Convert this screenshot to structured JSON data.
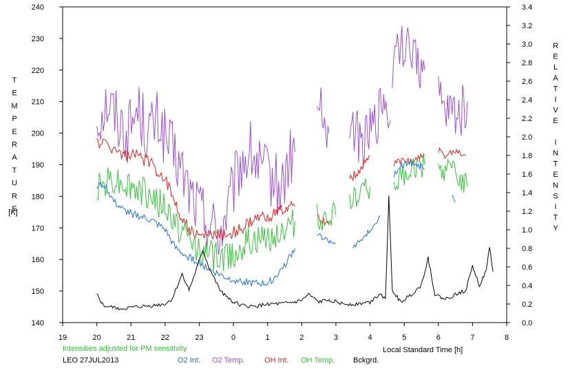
{
  "chart_data": {
    "type": "line",
    "left_axis": {
      "label_letters": [
        "T",
        "E",
        "M",
        "P",
        "E",
        "R",
        "A",
        "T",
        "U",
        "R",
        "E"
      ],
      "unit": "[K]",
      "ylim": [
        140,
        240
      ],
      "ticks": [
        140,
        150,
        160,
        170,
        180,
        190,
        200,
        210,
        220,
        230,
        240
      ]
    },
    "right_axis": {
      "label_letters": [
        "R",
        "E",
        "L",
        "A",
        "T",
        "I",
        "V",
        "E",
        "",
        "I",
        "N",
        "T",
        "E",
        "N",
        "S",
        "I",
        "T",
        "Y"
      ],
      "ylim": [
        0.0,
        3.4
      ],
      "ticks": [
        "0.0",
        "0.2",
        "0.4",
        "0.6",
        "0.8",
        "1.0",
        "1.2",
        "1.4",
        "1.6",
        "1.8",
        "2.0",
        "2.2",
        "2.4",
        "2.6",
        "2.8",
        "3.0",
        "3.2",
        "3.4"
      ]
    },
    "x_axis": {
      "label": "Local Standard Time [h]",
      "range_hours_after_19": [
        0,
        13
      ],
      "tick_labels": [
        "19",
        "20",
        "21",
        "22",
        "23",
        "0",
        "1",
        "2",
        "3",
        "4",
        "5",
        "6",
        "7",
        "8"
      ]
    },
    "note": "Intensities adjusted for PM sensitivity",
    "station_date": "LEO 27JUL2013",
    "legend": [
      {
        "label": "O2 Int.",
        "color": "#1f6fd6"
      },
      {
        "label": "O2 Temp.",
        "color": "#9b4fd1"
      },
      {
        "label": "OH Int.",
        "color": "#e0201c"
      },
      {
        "label": "OH Temp.",
        "color": "#35c23a"
      },
      {
        "label": "Bckgrd.",
        "color": "#000000"
      }
    ],
    "series": [
      {
        "name": "O2 Temp.",
        "axis": "left",
        "color": "#9b4fd1",
        "amp": 10,
        "points": [
          [
            20.0,
            204
          ],
          [
            20.3,
            210
          ],
          [
            20.6,
            205
          ],
          [
            20.9,
            200
          ],
          [
            21.2,
            208
          ],
          [
            21.5,
            200
          ],
          [
            21.8,
            204
          ],
          [
            22.1,
            196
          ],
          [
            22.4,
            190
          ],
          [
            22.7,
            182
          ],
          [
            23.0,
            176
          ],
          [
            23.3,
            172
          ],
          [
            23.6,
            168
          ],
          [
            23.9,
            178
          ],
          [
            24.2,
            190
          ],
          [
            24.5,
            194
          ],
          [
            24.8,
            188
          ],
          [
            25.1,
            186
          ],
          [
            25.4,
            182
          ],
          [
            25.6,
            190
          ],
          [
            25.8,
            194
          ]
        ]
      },
      {
        "name": "O2 Temp.",
        "axis": "left",
        "color": "#9b4fd1",
        "amp": 8,
        "points": [
          [
            26.45,
            212
          ],
          [
            26.6,
            206
          ],
          [
            26.8,
            200
          ]
        ]
      },
      {
        "name": "O2 Temp.",
        "axis": "left",
        "color": "#9b4fd1",
        "amp": 8,
        "points": [
          [
            27.4,
            204
          ],
          [
            27.6,
            200
          ],
          [
            27.8,
            196
          ],
          [
            28.0,
            200
          ],
          [
            28.2,
            204
          ],
          [
            28.4,
            212
          ],
          [
            28.6,
            204
          ]
        ]
      },
      {
        "name": "O2 Temp.",
        "axis": "left",
        "color": "#9b4fd1",
        "amp": 8,
        "points": [
          [
            28.65,
            222
          ],
          [
            28.8,
            226
          ],
          [
            29.0,
            228
          ],
          [
            29.2,
            224
          ],
          [
            29.4,
            222
          ],
          [
            29.6,
            220
          ]
        ]
      },
      {
        "name": "O2 Temp.",
        "axis": "left",
        "color": "#9b4fd1",
        "amp": 8,
        "points": [
          [
            30.0,
            212
          ],
          [
            30.2,
            206
          ],
          [
            30.4,
            208
          ],
          [
            30.6,
            206
          ],
          [
            30.85,
            210
          ]
        ]
      },
      {
        "name": "OH Int.",
        "axis": "right",
        "color": "#e0201c",
        "amp": 0.07,
        "points": [
          [
            20.0,
            1.95
          ],
          [
            20.4,
            1.9
          ],
          [
            20.8,
            1.8
          ],
          [
            21.2,
            1.8
          ],
          [
            21.6,
            1.7
          ],
          [
            22.0,
            1.55
          ],
          [
            22.4,
            1.2
          ],
          [
            22.7,
            1.0
          ],
          [
            23.0,
            0.92
          ],
          [
            23.4,
            0.95
          ],
          [
            23.8,
            0.95
          ],
          [
            24.2,
            1.0
          ],
          [
            24.6,
            1.1
          ],
          [
            25.0,
            1.15
          ],
          [
            25.4,
            1.2
          ],
          [
            25.8,
            1.25
          ]
        ]
      },
      {
        "name": "OH Int.",
        "axis": "right",
        "color": "#e0201c",
        "amp": 0.05,
        "points": [
          [
            26.45,
            1.15
          ],
          [
            26.6,
            1.1
          ],
          [
            26.8,
            1.05
          ]
        ]
      },
      {
        "name": "OH Int.",
        "axis": "right",
        "color": "#e0201c",
        "amp": 0.05,
        "points": [
          [
            27.4,
            1.55
          ],
          [
            27.6,
            1.6
          ],
          [
            27.8,
            1.7
          ],
          [
            28.0,
            1.8
          ]
        ]
      },
      {
        "name": "OH Int.",
        "axis": "right",
        "color": "#e0201c",
        "amp": 0.05,
        "points": [
          [
            28.7,
            1.7
          ],
          [
            29.0,
            1.75
          ],
          [
            29.3,
            1.75
          ],
          [
            29.6,
            1.8
          ]
        ]
      },
      {
        "name": "OH Int.",
        "axis": "right",
        "color": "#e0201c",
        "amp": 0.04,
        "points": [
          [
            30.0,
            1.85
          ],
          [
            30.2,
            1.8
          ],
          [
            30.5,
            1.85
          ],
          [
            30.8,
            1.8
          ]
        ]
      },
      {
        "name": "OH Temp.",
        "axis": "left",
        "color": "#35c23a",
        "amp": 5,
        "points": [
          [
            20.0,
            183
          ],
          [
            20.4,
            186
          ],
          [
            20.8,
            184
          ],
          [
            21.2,
            182
          ],
          [
            21.6,
            180
          ],
          [
            22.0,
            176
          ],
          [
            22.4,
            170
          ],
          [
            22.8,
            165
          ],
          [
            23.2,
            162
          ],
          [
            23.6,
            160
          ],
          [
            24.0,
            162
          ],
          [
            24.4,
            165
          ],
          [
            24.8,
            166
          ],
          [
            25.2,
            168
          ],
          [
            25.6,
            170
          ],
          [
            25.8,
            172
          ]
        ]
      },
      {
        "name": "OH Temp.",
        "axis": "left",
        "color": "#35c23a",
        "amp": 4,
        "points": [
          [
            26.45,
            174
          ],
          [
            26.6,
            172
          ],
          [
            26.8,
            175
          ],
          [
            27.0,
            174
          ]
        ]
      },
      {
        "name": "OH Temp.",
        "axis": "left",
        "color": "#35c23a",
        "amp": 4,
        "points": [
          [
            27.4,
            178
          ],
          [
            27.6,
            180
          ],
          [
            27.8,
            183
          ],
          [
            28.0,
            183
          ]
        ]
      },
      {
        "name": "OH Temp.",
        "axis": "left",
        "color": "#35c23a",
        "amp": 4,
        "points": [
          [
            28.7,
            183
          ],
          [
            29.0,
            187
          ],
          [
            29.3,
            189
          ],
          [
            29.6,
            190
          ]
        ]
      },
      {
        "name": "OH Temp.",
        "axis": "left",
        "color": "#35c23a",
        "amp": 4,
        "points": [
          [
            30.0,
            190
          ],
          [
            30.2,
            188
          ],
          [
            30.5,
            187
          ],
          [
            30.85,
            183
          ]
        ]
      },
      {
        "name": "O2 Int.",
        "axis": "right",
        "color": "#1f6fd6",
        "amp": 0.04,
        "points": [
          [
            20.0,
            1.45
          ],
          [
            20.2,
            1.5
          ],
          [
            20.5,
            1.3
          ],
          [
            20.8,
            1.2
          ],
          [
            21.2,
            1.15
          ],
          [
            21.6,
            1.1
          ],
          [
            22.0,
            1.0
          ],
          [
            22.3,
            0.8
          ],
          [
            22.6,
            0.72
          ],
          [
            23.0,
            0.65
          ],
          [
            23.4,
            0.55
          ],
          [
            23.8,
            0.48
          ],
          [
            24.2,
            0.45
          ],
          [
            24.6,
            0.42
          ],
          [
            25.0,
            0.42
          ],
          [
            25.3,
            0.52
          ],
          [
            25.6,
            0.68
          ],
          [
            25.8,
            0.8
          ]
        ]
      },
      {
        "name": "O2 Int.",
        "axis": "right",
        "color": "#1f6fd6",
        "amp": 0.03,
        "points": [
          [
            26.45,
            0.95
          ],
          [
            26.6,
            0.92
          ],
          [
            26.8,
            0.88
          ],
          [
            27.0,
            0.85
          ]
        ]
      },
      {
        "name": "O2 Int.",
        "axis": "right",
        "color": "#1f6fd6",
        "amp": 0.03,
        "points": [
          [
            27.5,
            0.82
          ],
          [
            27.8,
            0.9
          ],
          [
            28.0,
            1.0
          ],
          [
            28.2,
            1.1
          ],
          [
            28.3,
            1.15
          ]
        ]
      },
      {
        "name": "O2 Int.",
        "axis": "right",
        "color": "#1f6fd6",
        "amp": 0.04,
        "points": [
          [
            28.7,
            1.6
          ],
          [
            29.0,
            1.7
          ],
          [
            29.3,
            1.72
          ],
          [
            29.6,
            1.65
          ]
        ]
      },
      {
        "name": "O2 Int.",
        "axis": "right",
        "color": "#1f6fd6",
        "amp": 0.03,
        "points": [
          [
            30.4,
            1.35
          ],
          [
            30.5,
            1.3
          ]
        ]
      },
      {
        "name": "Bckgrd.",
        "axis": "right",
        "color": "#000000",
        "amp": 0.02,
        "points": [
          [
            20.0,
            0.3
          ],
          [
            20.2,
            0.18
          ],
          [
            20.5,
            0.16
          ],
          [
            20.8,
            0.15
          ],
          [
            21.2,
            0.17
          ],
          [
            21.6,
            0.18
          ],
          [
            22.0,
            0.2
          ],
          [
            22.2,
            0.25
          ],
          [
            22.5,
            0.52
          ],
          [
            22.7,
            0.35
          ],
          [
            22.9,
            0.55
          ],
          [
            23.1,
            0.78
          ],
          [
            23.3,
            0.58
          ],
          [
            23.6,
            0.35
          ],
          [
            24.0,
            0.22
          ],
          [
            24.3,
            0.18
          ],
          [
            24.6,
            0.17
          ],
          [
            25.0,
            0.2
          ],
          [
            25.4,
            0.2
          ],
          [
            25.8,
            0.22
          ],
          [
            26.0,
            0.24
          ],
          [
            26.2,
            0.3
          ],
          [
            26.5,
            0.22
          ],
          [
            26.8,
            0.25
          ],
          [
            27.2,
            0.2
          ],
          [
            27.6,
            0.2
          ],
          [
            28.0,
            0.22
          ],
          [
            28.3,
            0.32
          ],
          [
            28.45,
            0.25
          ],
          [
            28.55,
            1.35
          ],
          [
            28.65,
            0.35
          ],
          [
            28.9,
            0.22
          ],
          [
            29.2,
            0.3
          ],
          [
            29.5,
            0.4
          ],
          [
            29.7,
            0.7
          ],
          [
            29.9,
            0.3
          ],
          [
            30.2,
            0.25
          ],
          [
            30.5,
            0.3
          ],
          [
            30.8,
            0.35
          ],
          [
            31.0,
            0.62
          ],
          [
            31.2,
            0.4
          ],
          [
            31.4,
            0.55
          ],
          [
            31.5,
            0.82
          ],
          [
            31.6,
            0.55
          ]
        ]
      }
    ]
  }
}
